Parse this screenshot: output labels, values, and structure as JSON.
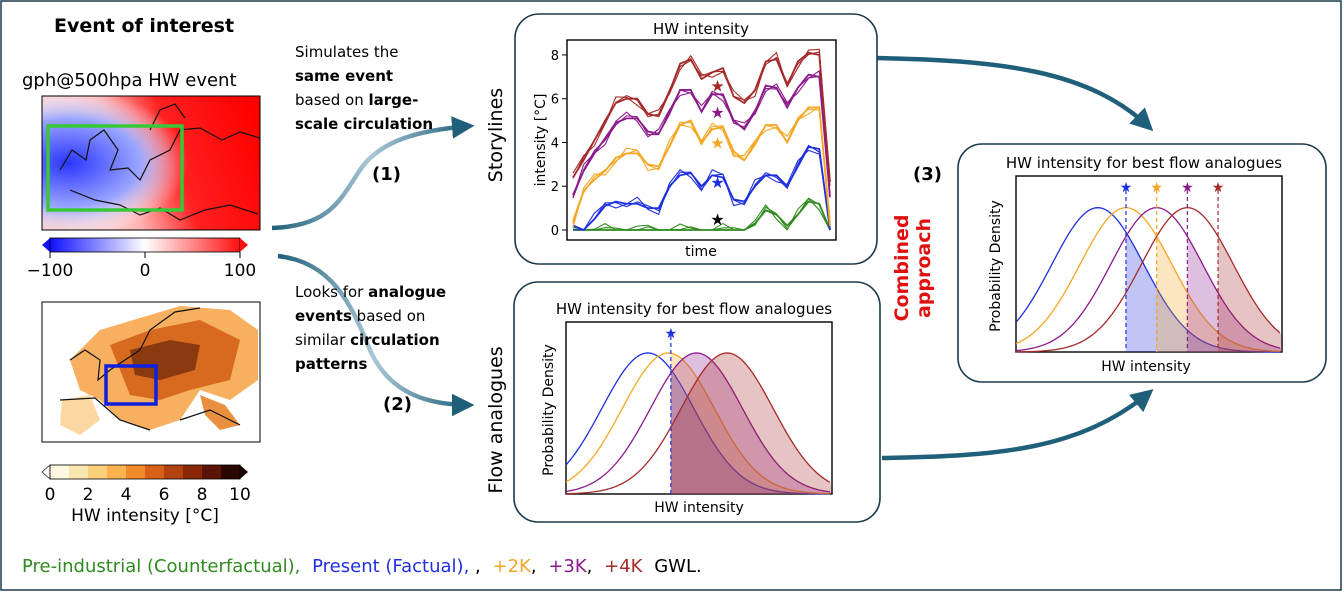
{
  "left": {
    "heading": "Event of interest",
    "map_title": "gph@500hpa HW event",
    "gph_ticks": [
      "−100",
      "0",
      "100"
    ],
    "hw_ticks": [
      "0",
      "2",
      "4",
      "6",
      "8",
      "10"
    ],
    "hw_label": "HW intensity [°C]"
  },
  "arrows": {
    "one": "(1)",
    "two": "(2)",
    "three": "(3)"
  },
  "desc1": {
    "l1": "Simulates the",
    "l2a": "same event",
    "l3a": "based on ",
    "l3b": "large-",
    "l4": "scale circulation"
  },
  "desc2": {
    "l1a": "Looks for ",
    "l1b": "analogue",
    "l2a": "events",
    "l2b": " based on",
    "l3": "similar ",
    "l3b": "circulation",
    "l4": "patterns"
  },
  "storylines": {
    "side_label": "Storylines",
    "title": "HW intensity",
    "ylabel": "intensity [°C]",
    "xlabel": "time",
    "yticks": [
      "0",
      "2",
      "4",
      "6",
      "8"
    ]
  },
  "flow": {
    "side_label": "Flow analogues",
    "title": "HW intensity for best flow analogues",
    "ylabel": "Probability Density",
    "xlabel": "HW intensity"
  },
  "combined": {
    "side_label_1": "Combined",
    "side_label_2": "approach",
    "title": "HW intensity for best flow analogues",
    "ylabel": "Probability Density",
    "xlabel": "HW intensity"
  },
  "legend": {
    "pi": "Pre-industrial (Counterfactual),",
    "present": "Present (Factual),",
    "k2": "+2K",
    "k3": "+3K",
    "k4": "+4K",
    "gwl": "GWL."
  },
  "colors": {
    "pi": "#2e8b1e",
    "present": "#1f2fe0",
    "k2": "#f5a623",
    "k3": "#8b1a8b",
    "k4": "#a52a2a",
    "accent_red": "#e01010",
    "arrow": "#1f5f7a"
  },
  "chart_data": [
    {
      "type": "line",
      "title": "HW intensity",
      "xlabel": "time",
      "ylabel": "intensity [°C]",
      "ylim": [
        0,
        8.5
      ],
      "x": [
        0,
        1,
        2,
        3,
        4,
        5,
        6,
        7,
        8,
        9,
        10,
        11,
        12,
        13,
        14,
        15,
        16,
        17,
        18,
        19,
        20,
        21,
        22,
        23,
        24
      ],
      "series": [
        {
          "values": [
            0,
            0,
            0,
            0,
            0,
            0,
            0,
            0,
            0,
            0,
            0,
            0,
            0,
            0,
            0,
            0,
            0,
            0.3,
            0.9,
            0.7,
            0.2,
            0.7,
            1.3,
            1.2,
            0
          ]
        },
        {
          "values": [
            0.2,
            0,
            0.5,
            1.1,
            1.3,
            1.2,
            1.2,
            1.0,
            1.0,
            2.0,
            2.5,
            2.6,
            2.0,
            2.5,
            2.4,
            1.4,
            1.3,
            2.0,
            2.5,
            2.5,
            2.0,
            2.9,
            3.8,
            3.7,
            0
          ]
        },
        {
          "values": [
            0.4,
            1.8,
            2.3,
            2.7,
            3.3,
            3.5,
            3.5,
            3.0,
            2.9,
            3.8,
            4.8,
            5.0,
            4.0,
            4.6,
            4.7,
            3.6,
            3.2,
            3.9,
            4.8,
            4.8,
            4.0,
            5.0,
            5.6,
            5.6,
            0.2
          ]
        },
        {
          "values": [
            1.6,
            2.7,
            3.5,
            4.2,
            4.9,
            5.1,
            5.1,
            4.5,
            4.4,
            5.3,
            6.4,
            6.4,
            5.4,
            6.2,
            6.2,
            5.0,
            4.6,
            5.4,
            6.6,
            6.5,
            5.6,
            6.5,
            7.1,
            7.0,
            1.5
          ]
        },
        {
          "values": [
            2.4,
            3.2,
            4.1,
            5.0,
            5.8,
            6.0,
            6.0,
            5.3,
            5.2,
            6.3,
            7.6,
            7.8,
            6.9,
            7.2,
            7.4,
            6.1,
            5.8,
            6.4,
            7.7,
            7.8,
            6.6,
            7.7,
            8.1,
            8.0,
            2.2
          ]
        }
      ],
      "stars": [
        0.5,
        2.2,
        4.0,
        5.4,
        6.6
      ]
    },
    {
      "type": "area",
      "title": "HW intensity for best flow analogues",
      "xlabel": "HW intensity",
      "ylabel": "Probability Density",
      "threshold_series": 0,
      "series": [
        {
          "mean": 0.4,
          "sd": 0.9
        },
        {
          "mean": 0.8,
          "sd": 0.9
        },
        {
          "mean": 1.35,
          "sd": 0.9
        },
        {
          "mean": 1.95,
          "sd": 0.9
        }
      ]
    },
    {
      "type": "area",
      "title": "HW intensity for best flow analogues",
      "xlabel": "HW intensity",
      "ylabel": "Probability Density",
      "series": [
        {
          "mean": 0.4,
          "sd": 0.9
        },
        {
          "mean": 0.95,
          "sd": 0.9
        },
        {
          "mean": 1.55,
          "sd": 0.9
        },
        {
          "mean": 2.15,
          "sd": 0.9
        }
      ]
    }
  ]
}
